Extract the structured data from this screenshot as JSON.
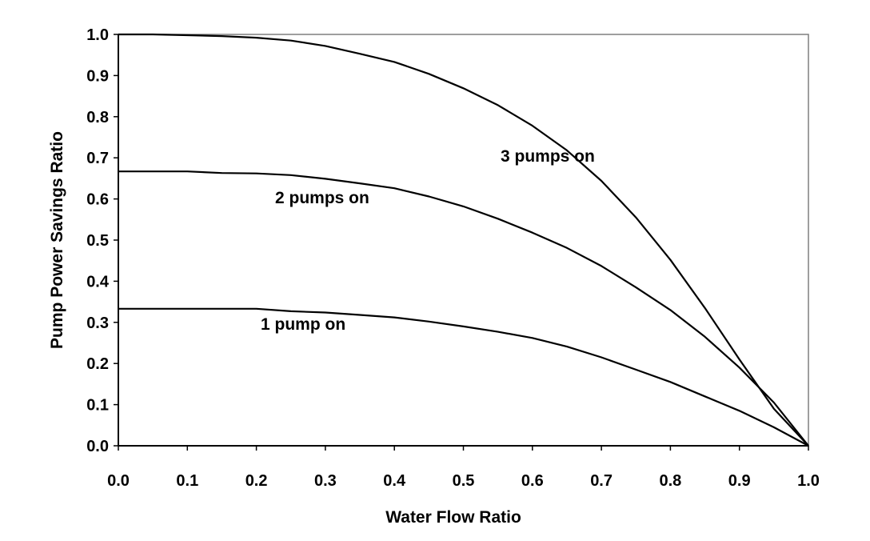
{
  "chart_data": {
    "type": "line",
    "xlabel": "Water Flow Ratio",
    "ylabel": "Pump Power Savings Ratio",
    "xlim": [
      0.0,
      1.0
    ],
    "ylim": [
      0.0,
      1.0
    ],
    "xticks": [
      "0.0",
      "0.1",
      "0.2",
      "0.3",
      "0.4",
      "0.5",
      "0.6",
      "0.7",
      "0.8",
      "0.9",
      "1.0"
    ],
    "yticks": [
      "0.0",
      "0.1",
      "0.2",
      "0.3",
      "0.4",
      "0.5",
      "0.6",
      "0.7",
      "0.8",
      "0.9",
      "1.0"
    ],
    "grid": false,
    "legend": "none",
    "line_color": "#000000",
    "series": [
      {
        "name": "1 pump on",
        "x": [
          0.0,
          0.05,
          0.1,
          0.15,
          0.2,
          0.25,
          0.3,
          0.35,
          0.4,
          0.45,
          0.5,
          0.55,
          0.6,
          0.65,
          0.7,
          0.75,
          0.8,
          0.85,
          0.9,
          0.95,
          1.0
        ],
        "y": [
          0.333,
          0.333,
          0.333,
          0.333,
          0.333,
          0.327,
          0.324,
          0.318,
          0.312,
          0.302,
          0.29,
          0.277,
          0.262,
          0.241,
          0.215,
          0.185,
          0.155,
          0.12,
          0.085,
          0.045,
          0.0
        ]
      },
      {
        "name": "2 pumps on",
        "x": [
          0.0,
          0.05,
          0.1,
          0.15,
          0.2,
          0.25,
          0.3,
          0.35,
          0.4,
          0.45,
          0.5,
          0.55,
          0.6,
          0.65,
          0.7,
          0.75,
          0.8,
          0.85,
          0.9,
          0.95,
          1.0
        ],
        "y": [
          0.667,
          0.667,
          0.667,
          0.663,
          0.662,
          0.658,
          0.649,
          0.638,
          0.626,
          0.606,
          0.582,
          0.552,
          0.518,
          0.481,
          0.437,
          0.385,
          0.33,
          0.265,
          0.19,
          0.105,
          0.0
        ]
      },
      {
        "name": "3 pumps on",
        "x": [
          0.0,
          0.05,
          0.1,
          0.15,
          0.2,
          0.25,
          0.3,
          0.35,
          0.4,
          0.45,
          0.5,
          0.55,
          0.6,
          0.65,
          0.7,
          0.75,
          0.8,
          0.85,
          0.9,
          0.95,
          1.0
        ],
        "y": [
          1.0,
          1.0,
          0.998,
          0.996,
          0.992,
          0.985,
          0.972,
          0.953,
          0.933,
          0.904,
          0.869,
          0.828,
          0.778,
          0.718,
          0.644,
          0.555,
          0.452,
          0.335,
          0.21,
          0.09,
          0.0
        ]
      }
    ]
  }
}
